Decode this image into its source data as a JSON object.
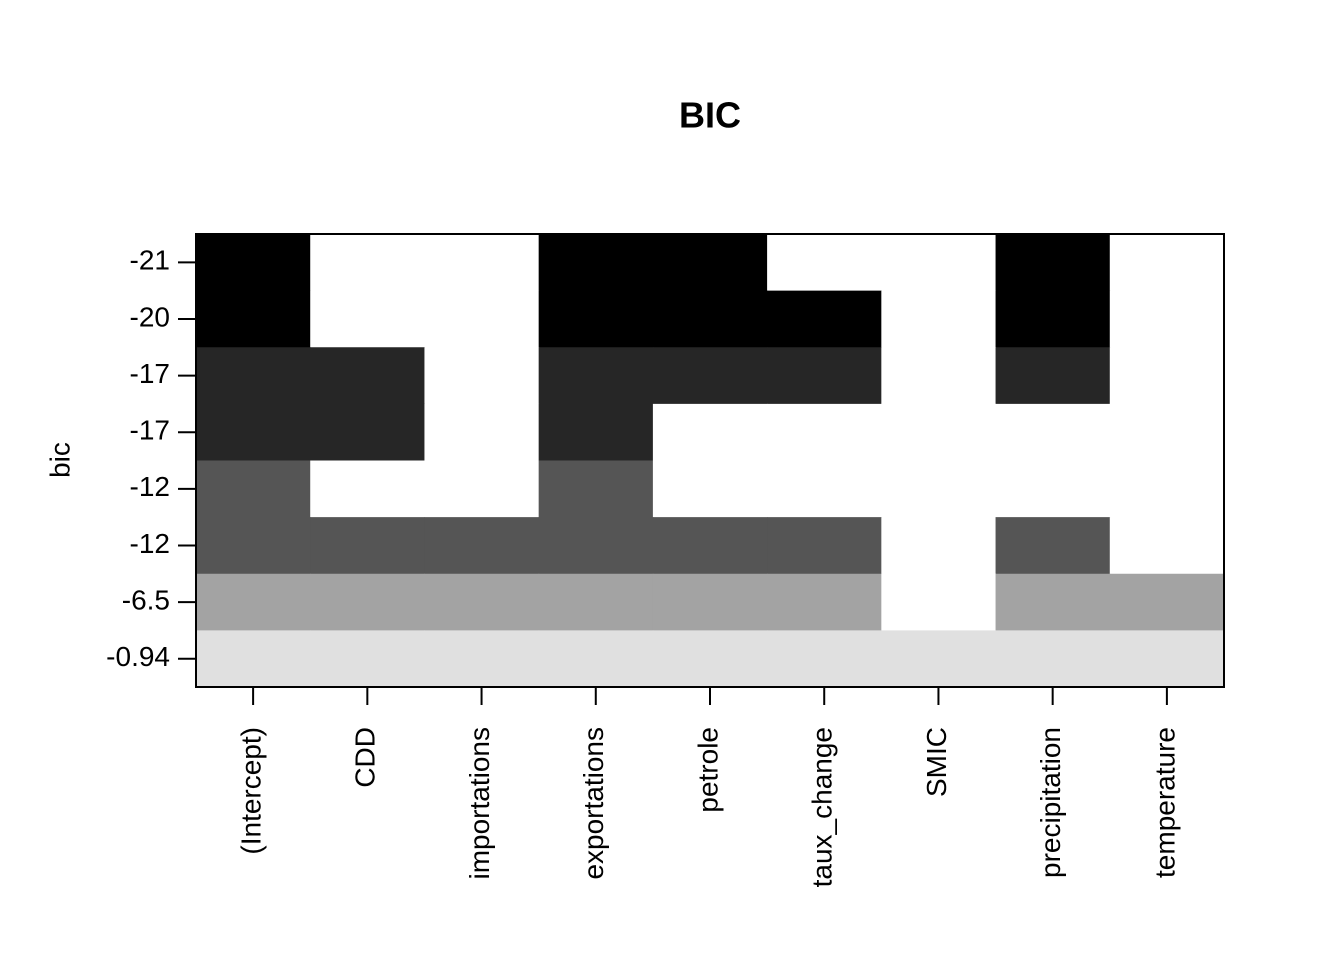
{
  "chart_data": {
    "type": "heatmap",
    "title": "BIC",
    "ylabel": "bic",
    "categories": [
      "(Intercept)",
      "CDD",
      "importations",
      "exportations",
      "petrole",
      "taux_change",
      "SMIC",
      "precipitation",
      "temperature"
    ],
    "rows": [
      -21,
      -20,
      -17,
      -17,
      -12,
      -12,
      -6.5,
      -0.94
    ],
    "row_colors": [
      "#000000",
      "#000000",
      "#262626",
      "#262626",
      "#555555",
      "#555555",
      "#a3a3a3",
      "#e0e0e0"
    ],
    "empty_color": "#ffffff",
    "matrix": [
      [
        1,
        0,
        0,
        1,
        1,
        0,
        0,
        1,
        0
      ],
      [
        1,
        0,
        0,
        1,
        1,
        1,
        0,
        1,
        0
      ],
      [
        1,
        1,
        0,
        1,
        1,
        1,
        0,
        1,
        0
      ],
      [
        1,
        1,
        0,
        1,
        0,
        0,
        0,
        0,
        0
      ],
      [
        1,
        0,
        0,
        1,
        0,
        0,
        0,
        0,
        0
      ],
      [
        1,
        1,
        1,
        1,
        1,
        1,
        0,
        1,
        0
      ],
      [
        1,
        1,
        1,
        1,
        1,
        1,
        0,
        1,
        1
      ],
      [
        1,
        1,
        1,
        1,
        1,
        1,
        1,
        1,
        1
      ]
    ]
  }
}
